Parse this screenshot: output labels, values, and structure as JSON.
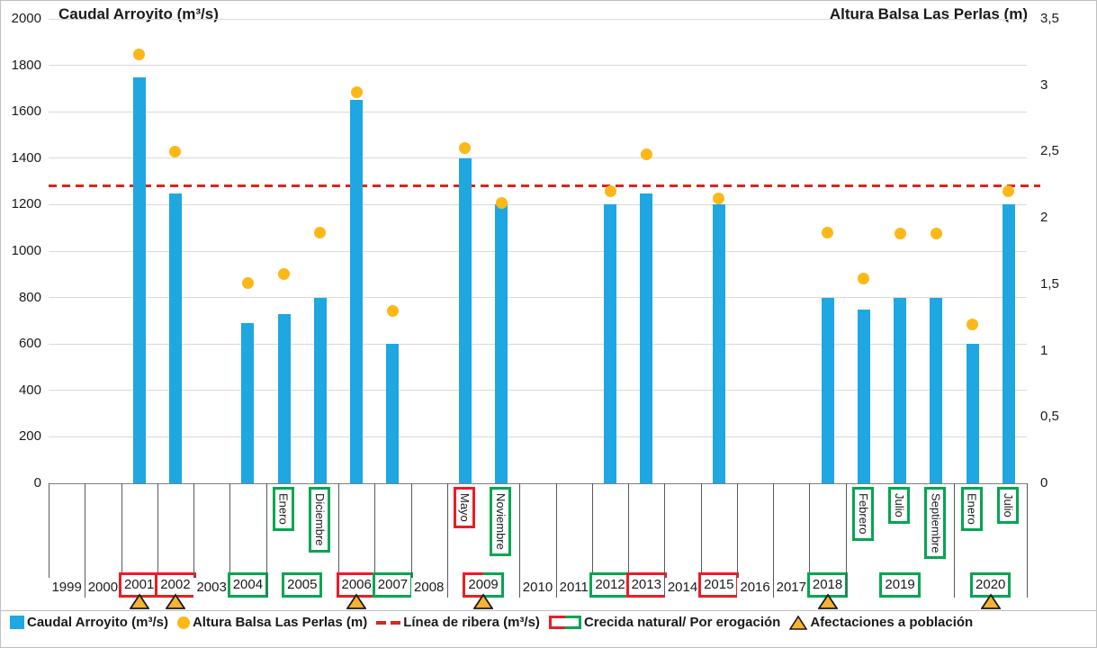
{
  "colors": {
    "bar_blue": "#1EA7E1",
    "dot_yellow": "#FBB817",
    "ribera_red": "#D9261C",
    "box_red": "#EC1C24",
    "box_green": "#00A651",
    "triangle_fill": "#F9B233",
    "triangle_stroke": "#1a1a1a",
    "gridline": "#D9D9D9"
  },
  "legend": [
    {
      "label": "Caudal Arroyito (m³/s)",
      "marker": "blue-square"
    },
    {
      "label": "Altura Balsa Las Perlas (m)",
      "marker": "yellow-circle"
    },
    {
      "label": "Línea de ribera (m³/s)",
      "marker": "red-dashes"
    },
    {
      "label": "Crecida natural/ Por erogación",
      "marker": "red-green-rect"
    },
    {
      "label": "Afectaciones a población",
      "marker": "yellow-triangle"
    }
  ],
  "chart_data": {
    "type": "bar",
    "left_axis": {
      "title": "Caudal Arroyito (m³/s)",
      "min": 0,
      "max": 2000,
      "step": 200
    },
    "right_axis": {
      "title": "Altura Balsa Las Perlas (m)",
      "min": 0,
      "max": 3.5,
      "step": 0.5,
      "tick_labels": [
        "0",
        "0,5",
        "1",
        "1,5",
        "2",
        "2,5",
        "3",
        "3,5"
      ]
    },
    "ribera_line": {
      "label": "Línea de ribera (m³/s)",
      "value_m3s": 1280
    },
    "series": [
      {
        "name": "Caudal Arroyito (m³/s)",
        "type": "bar",
        "axis": "left"
      },
      {
        "name": "Altura Balsa Las Perlas (m)",
        "type": "scatter",
        "axis": "right"
      }
    ],
    "columns": [
      {
        "year": "1999",
        "month": null,
        "caudal": null,
        "altura_m": null,
        "month_box": null
      },
      {
        "year": "2000",
        "month": null,
        "caudal": null,
        "altura_m": null,
        "month_box": null
      },
      {
        "year": "2001",
        "month": null,
        "caudal": 1750,
        "altura_m": 3.23,
        "month_box": null
      },
      {
        "year": "2002",
        "month": null,
        "caudal": 1250,
        "altura_m": 2.5,
        "month_box": null
      },
      {
        "year": "2003",
        "month": null,
        "caudal": null,
        "altura_m": null,
        "month_box": null
      },
      {
        "year": "2004",
        "month": null,
        "caudal": 690,
        "altura_m": 1.51,
        "month_box": null
      },
      {
        "year": "2005",
        "month": "Enero",
        "caudal": 730,
        "altura_m": 1.58,
        "month_box": "green"
      },
      {
        "year": "2005",
        "month": "Diciembre",
        "caudal": 800,
        "altura_m": 1.89,
        "month_box": "green"
      },
      {
        "year": "2006",
        "month": null,
        "caudal": 1650,
        "altura_m": 2.95,
        "month_box": null
      },
      {
        "year": "2007",
        "month": null,
        "caudal": 600,
        "altura_m": 1.3,
        "month_box": null
      },
      {
        "year": "2008",
        "month": null,
        "caudal": null,
        "altura_m": null,
        "month_box": null
      },
      {
        "year": "2009",
        "month": "Mayo",
        "caudal": 1400,
        "altura_m": 2.53,
        "month_box": "red"
      },
      {
        "year": "2009",
        "month": "Noviembre",
        "caudal": 1200,
        "altura_m": 2.11,
        "month_box": "green"
      },
      {
        "year": "2010",
        "month": null,
        "caudal": null,
        "altura_m": null,
        "month_box": null
      },
      {
        "year": "2011",
        "month": null,
        "caudal": null,
        "altura_m": null,
        "month_box": null
      },
      {
        "year": "2012",
        "month": null,
        "caudal": 1200,
        "altura_m": 2.2,
        "month_box": null
      },
      {
        "year": "2013",
        "month": null,
        "caudal": 1250,
        "altura_m": 2.48,
        "month_box": null
      },
      {
        "year": "2014",
        "month": null,
        "caudal": null,
        "altura_m": null,
        "month_box": null
      },
      {
        "year": "2015",
        "month": null,
        "caudal": 1200,
        "altura_m": 2.15,
        "month_box": null
      },
      {
        "year": "2016",
        "month": null,
        "caudal": null,
        "altura_m": null,
        "month_box": null
      },
      {
        "year": "2017",
        "month": null,
        "caudal": null,
        "altura_m": null,
        "month_box": null
      },
      {
        "year": "2018",
        "month": null,
        "caudal": 800,
        "altura_m": 1.89,
        "month_box": null
      },
      {
        "year": "2019",
        "month": "Febrero",
        "caudal": 750,
        "altura_m": 1.54,
        "month_box": "green"
      },
      {
        "year": "2019",
        "month": "Julio",
        "caudal": 800,
        "altura_m": 1.88,
        "month_box": "green"
      },
      {
        "year": "2019",
        "month": "Septiembre",
        "caudal": 800,
        "altura_m": 1.88,
        "month_box": "green"
      },
      {
        "year": "2020",
        "month": "Enero",
        "caudal": 600,
        "altura_m": 1.2,
        "month_box": "green"
      },
      {
        "year": "2020",
        "month": "Julio",
        "caudal": 1200,
        "altura_m": 2.2,
        "month_box": "green"
      }
    ],
    "years": [
      {
        "label": "1999",
        "span": 1,
        "box": null,
        "triangle": false
      },
      {
        "label": "2000",
        "span": 1,
        "box": null,
        "triangle": false
      },
      {
        "label": "2001",
        "span": 1,
        "box": "red",
        "triangle": true
      },
      {
        "label": "2002",
        "span": 1,
        "box": "red",
        "triangle": true
      },
      {
        "label": "2003",
        "span": 1,
        "box": null,
        "triangle": false
      },
      {
        "label": "2004",
        "span": 1,
        "box": "green",
        "triangle": false
      },
      {
        "label": "2005",
        "span": 2,
        "box": "green",
        "triangle": false
      },
      {
        "label": "2006",
        "span": 1,
        "box": "red",
        "triangle": true
      },
      {
        "label": "2007",
        "span": 1,
        "box": "green",
        "triangle": false
      },
      {
        "label": "2008",
        "span": 1,
        "box": null,
        "triangle": false
      },
      {
        "label": "2009",
        "span": 2,
        "box": "red-green",
        "triangle": true
      },
      {
        "label": "2010",
        "span": 1,
        "box": null,
        "triangle": false
      },
      {
        "label": "2011",
        "span": 1,
        "box": null,
        "triangle": false
      },
      {
        "label": "2012",
        "span": 1,
        "box": "green",
        "triangle": false
      },
      {
        "label": "2013",
        "span": 1,
        "box": "red",
        "triangle": false
      },
      {
        "label": "2014",
        "span": 1,
        "box": null,
        "triangle": false
      },
      {
        "label": "2015",
        "span": 1,
        "box": "red",
        "triangle": false
      },
      {
        "label": "2016",
        "span": 1,
        "box": null,
        "triangle": false
      },
      {
        "label": "2017",
        "span": 1,
        "box": null,
        "triangle": false
      },
      {
        "label": "2018",
        "span": 1,
        "box": "green",
        "triangle": true
      },
      {
        "label": "2019",
        "span": 3,
        "box": "green",
        "triangle": false
      },
      {
        "label": "2020",
        "span": 2,
        "box": "green",
        "triangle": true
      }
    ]
  }
}
